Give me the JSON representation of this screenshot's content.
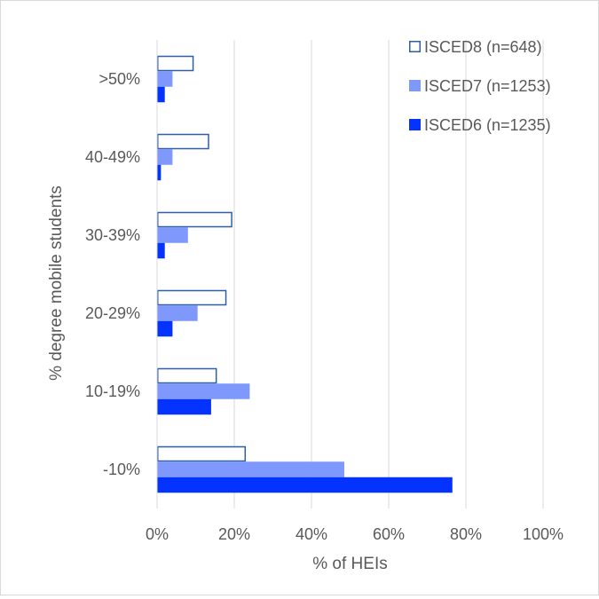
{
  "chart_data": {
    "type": "bar",
    "orientation": "horizontal",
    "title": "",
    "xlabel": "% of HEIs",
    "ylabel": "% degree mobile students",
    "xlim": [
      0,
      100
    ],
    "x_tick_labels": [
      "0%",
      "20%",
      "40%",
      "60%",
      "80%",
      "100%"
    ],
    "categories": [
      ">50%",
      "40-49%",
      "30-39%",
      "20-29%",
      "10-19%",
      "-10%"
    ],
    "series": [
      {
        "name": "ISCED8 (n=648)",
        "values": [
          9.5,
          13.5,
          19.5,
          18,
          15.5,
          23
        ],
        "fill": "#ffffff",
        "stroke": "#2e5fa6"
      },
      {
        "name": "ISCED7 (n=1253)",
        "values": [
          4,
          4,
          8,
          10.5,
          24,
          48.5
        ],
        "fill": "#7f98fb",
        "stroke": "#7f98fb"
      },
      {
        "name": "ISCED6 (n=1235)",
        "values": [
          2,
          1,
          2,
          4,
          14,
          76.5
        ],
        "fill": "#0433ff",
        "stroke": "#0433ff"
      }
    ],
    "grid": true,
    "legend_position": "top-right"
  }
}
